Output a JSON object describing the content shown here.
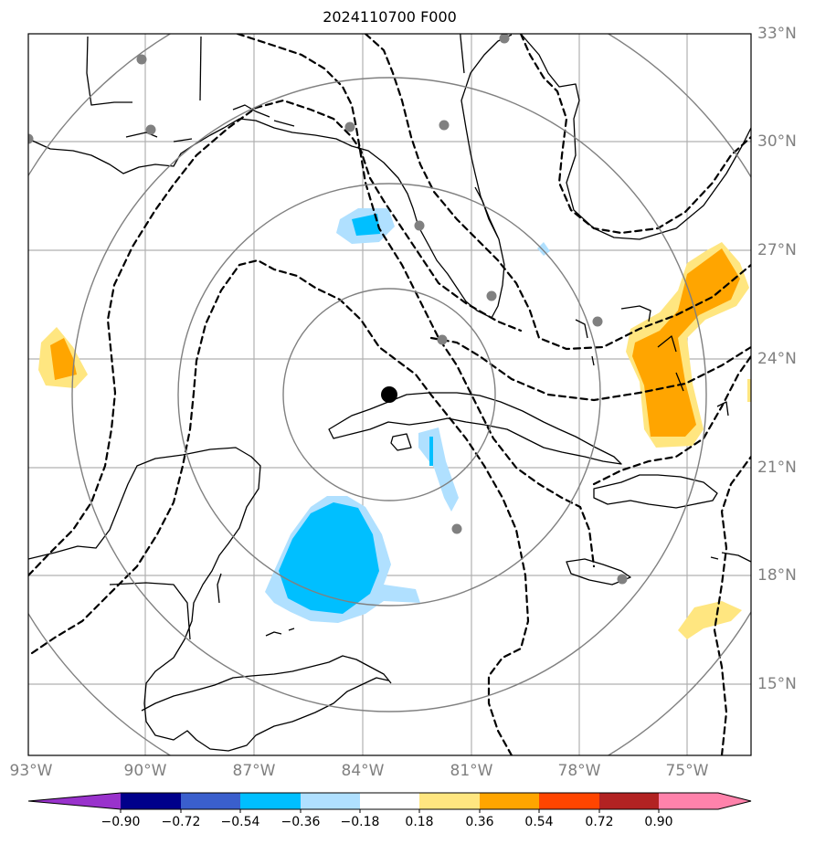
{
  "title": "2024110700 F000",
  "lat_labels": [
    "33°N",
    "30°N",
    "27°N",
    "24°N",
    "21°N",
    "18°N",
    "15°N"
  ],
  "lon_labels": [
    "93°W",
    "90°W",
    "87°W",
    "84°W",
    "81°W",
    "78°W",
    "75°W"
  ],
  "colorbar": {
    "ticks": [
      "−0.90",
      "−0.72",
      "−0.54",
      "−0.36",
      "−0.18",
      "0.18",
      "0.36",
      "0.54",
      "0.72",
      "0.90"
    ],
    "colors": [
      "#9932cc",
      "#00008b",
      "#3a5fcd",
      "#00bfff",
      "#b0e0ff",
      "#ffffff",
      "#ffe680",
      "#ffa500",
      "#ff4500",
      "#b22222",
      "#ff82ab"
    ]
  },
  "colors": {
    "grid": "#b0b0b0",
    "range_ring": "#808080",
    "station": "#808080",
    "center": "#000000",
    "negative_fill": "#00bfff",
    "negative_light": "#b0e0ff",
    "positive_fill": "#ffa500",
    "positive_light": "#ffe680"
  }
}
